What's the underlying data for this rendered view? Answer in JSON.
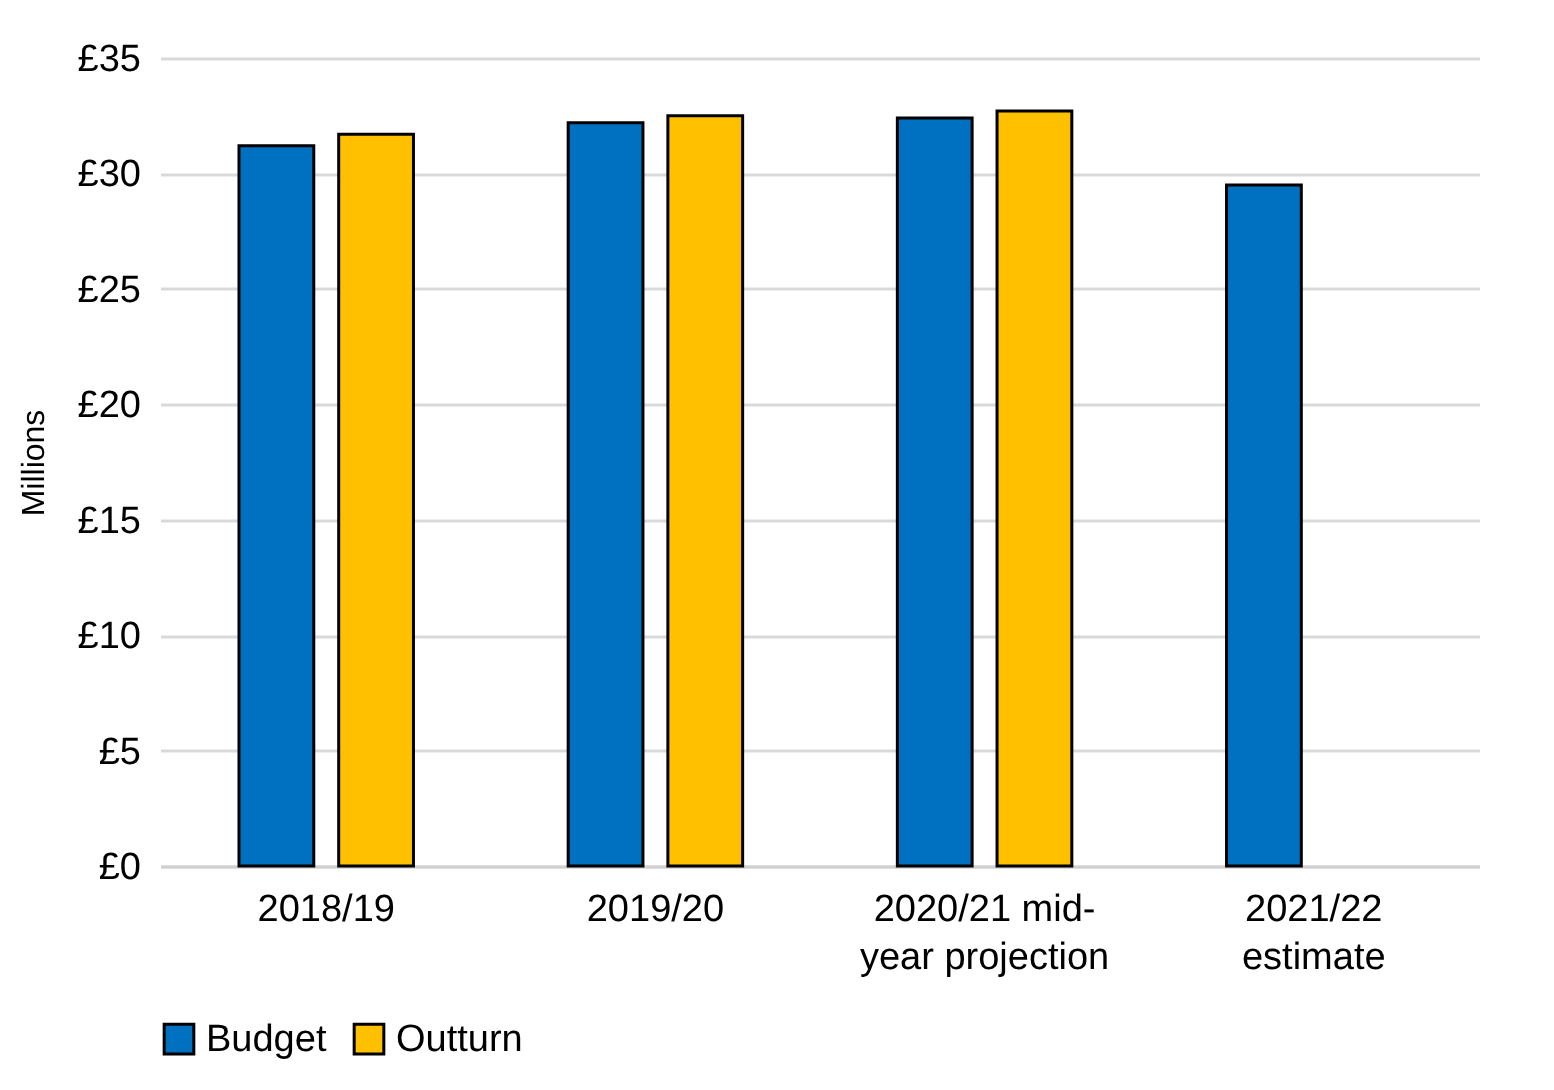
{
  "chart_data": {
    "type": "bar",
    "ylabel": "Millions",
    "categories": [
      "2018/19",
      "2019/20",
      "2020/21 mid-year projection",
      "2021/22 estimate"
    ],
    "series": [
      {
        "name": "Budget",
        "color": "#0070c0",
        "values": [
          31.2,
          32.2,
          32.4,
          29.5
        ]
      },
      {
        "name": "Outturn",
        "color": "#ffc000",
        "values": [
          31.7,
          32.5,
          32.7,
          null
        ]
      }
    ],
    "ylim": [
      0,
      35
    ],
    "yticks": [
      {
        "value": 0,
        "label": "£0"
      },
      {
        "value": 5,
        "label": "£5"
      },
      {
        "value": 10,
        "label": "£10"
      },
      {
        "value": 15,
        "label": "£15"
      },
      {
        "value": 20,
        "label": "£20"
      },
      {
        "value": 25,
        "label": "£25"
      },
      {
        "value": 30,
        "label": "£30"
      },
      {
        "value": 35,
        "label": "£35"
      }
    ],
    "grid": "y",
    "legend": "bottom"
  }
}
